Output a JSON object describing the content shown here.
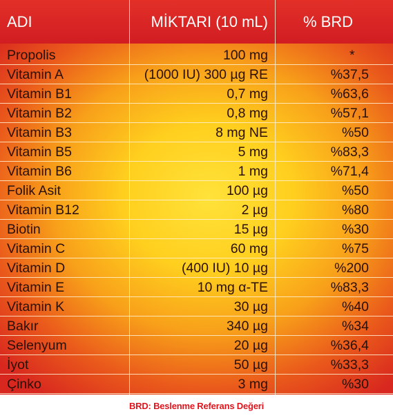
{
  "headers": {
    "name": "ADI",
    "amount": "MİKTARI (10 mL)",
    "brd": "% BRD"
  },
  "rows": [
    {
      "name": "Propolis",
      "amount": "100 mg",
      "brd": "*"
    },
    {
      "name": "Vitamin A",
      "amount": "(1000 IU) 300 µg RE",
      "brd": "%37,5"
    },
    {
      "name": "Vitamin B1",
      "amount": "0,7 mg",
      "brd": "%63,6"
    },
    {
      "name": "Vitamin B2",
      "amount": "0,8 mg",
      "brd": "%57,1"
    },
    {
      "name": "Vitamin B3",
      "amount": "8 mg NE",
      "brd": "%50"
    },
    {
      "name": "Vitamin B5",
      "amount": "5 mg",
      "brd": "%83,3"
    },
    {
      "name": "Vitamin B6",
      "amount": "1 mg",
      "brd": "%71,4"
    },
    {
      "name": "Folik Asit",
      "amount": "100 µg",
      "brd": "%50"
    },
    {
      "name": "Vitamin B12",
      "amount": "2 µg",
      "brd": "%80"
    },
    {
      "name": "Biotin",
      "amount": "15 µg",
      "brd": "%30"
    },
    {
      "name": "Vitamin C",
      "amount": "60 mg",
      "brd": "%75"
    },
    {
      "name": "Vitamin D",
      "amount": "(400 IU) 10 µg",
      "brd": "%200"
    },
    {
      "name": "Vitamin E",
      "amount": "10 mg α-TE",
      "brd": "%83,3"
    },
    {
      "name": "Vitamin K",
      "amount": "30 µg",
      "brd": "%40"
    },
    {
      "name": "Bakır",
      "amount": "340 µg",
      "brd": "%34"
    },
    {
      "name": "Selenyum",
      "amount": "20 µg",
      "brd": "%36,4"
    },
    {
      "name": "İyot",
      "amount": "50 µg",
      "brd": "%33,3"
    },
    {
      "name": "Çinko",
      "amount": "3 mg",
      "brd": "%30"
    }
  ],
  "footnote": "BRD: Beslenme Referans Değeri",
  "colors": {
    "header_red": "#d11d22",
    "center_yellow": "#ffe23a",
    "edge_red": "#d8271f",
    "footnote_red": "#e0141c"
  }
}
